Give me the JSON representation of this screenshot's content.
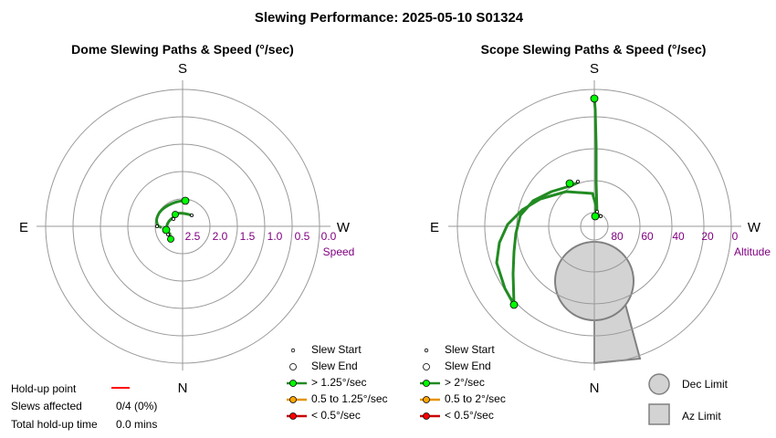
{
  "title": "Slewing Performance: 2025-05-10 S01324",
  "chart_data": [
    {
      "type": "scatter",
      "title": "Dome Slewing Paths & Speed (°/sec)",
      "cardinals": {
        "top": "S",
        "bottom": "N",
        "left": "E",
        "right": "W"
      },
      "radial_axis": {
        "label": "Speed",
        "ticks": [
          "2.5",
          "2.0",
          "1.5",
          "1.0",
          "0.5",
          "0.0"
        ]
      },
      "grid": true,
      "legend": {
        "placement": "bottom-right",
        "items": [
          "Slew Start",
          "Slew End",
          "> 1.25°/sec",
          "0.5 to 1.25°/sec",
          "< 0.5°/sec"
        ]
      },
      "colors": {
        "fast": "#00ff00",
        "medium": "#ffa500",
        "slow": "#ff0000",
        "path": "#228b22"
      }
    },
    {
      "type": "scatter",
      "title": "Scope Slewing Paths & Speed (°/sec)",
      "cardinals": {
        "top": "S",
        "bottom": "N",
        "left": "E",
        "right": "W"
      },
      "radial_axis": {
        "label": "Altitude",
        "ticks": [
          "80",
          "60",
          "40",
          "20",
          "0"
        ]
      },
      "grid": true,
      "legend": {
        "placement": "bottom-right",
        "items": [
          "Slew Start",
          "Slew End",
          "> 2°/sec",
          "0.5 to 2°/sec",
          "< 0.5°/sec"
        ]
      },
      "limits": {
        "dec_label": "Dec Limit",
        "az_label": "Az Limit",
        "fill": "#d3d3d3"
      }
    }
  ],
  "holdup": {
    "point_label": "Hold-up point",
    "slews_label": "Slews affected",
    "slews_value": "0/4 (0%)",
    "time_label": "Total hold-up time",
    "time_value": "0.0 mins",
    "marker_color": "#ff0000"
  }
}
